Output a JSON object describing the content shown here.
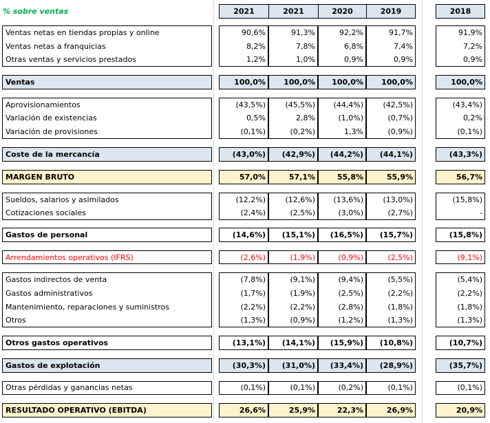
{
  "title": "% sobre ventas",
  "headers": [
    "2021",
    "2021",
    "2020",
    "2019",
    "2018"
  ],
  "blocks": [
    {
      "type": "group",
      "rows": [
        {
          "label": "Ventas netas en tiendas propias y online",
          "values": [
            "90,6%",
            "91,3%",
            "92,2%",
            "91,7%",
            "91,9%"
          ]
        },
        {
          "label": "Ventas netas a franquicias",
          "values": [
            "8,2%",
            "7,8%",
            "6,8%",
            "7,4%",
            "7,2%"
          ]
        },
        {
          "label": "Otras ventas y servicios prestados",
          "values": [
            "1,2%",
            "1,0%",
            "0,9%",
            "0,9%",
            "0,9%"
          ]
        }
      ]
    },
    {
      "type": "total",
      "fill": "blue",
      "label": "Ventas",
      "values": [
        "100,0%",
        "100,0%",
        "100,0%",
        "100,0%",
        "100,0%"
      ]
    },
    {
      "type": "group",
      "rows": [
        {
          "label": "Aprovisionamientos",
          "values": [
            "(43,5%)",
            "(45,5%)",
            "(44,4%)",
            "(42,5%)",
            "(43,4%)"
          ]
        },
        {
          "label": "Variación de existencias",
          "values": [
            "0,5%",
            "2,8%",
            "(1,0%)",
            "(0,7%)",
            "0,2%"
          ]
        },
        {
          "label": "Variación de provisiones",
          "values": [
            "(0,1%)",
            "(0,2%)",
            "1,3%",
            "(0,9%)",
            "(0,1%)"
          ]
        }
      ]
    },
    {
      "type": "total",
      "fill": "blue",
      "label": "Coste de la mercancía",
      "values": [
        "(43,0%)",
        "(42,9%)",
        "(44,2%)",
        "(44,1%)",
        "(43,3%)"
      ]
    },
    {
      "type": "total",
      "fill": "cream",
      "label": "MARGEN BRUTO",
      "values": [
        "57,0%",
        "57,1%",
        "55,8%",
        "55,9%",
        "56,7%"
      ]
    },
    {
      "type": "group",
      "rows": [
        {
          "label": "Sueldos, salarios y asimilados",
          "values": [
            "(12,2%)",
            "(12,6%)",
            "(13,6%)",
            "(13,0%)",
            "(15,8%)"
          ]
        },
        {
          "label": "Cotizaciones sociales",
          "values": [
            "(2,4%)",
            "(2,5%)",
            "(3,0%)",
            "(2,7%)",
            "-"
          ]
        }
      ]
    },
    {
      "type": "total",
      "fill": "none",
      "label": "Gastos de personal",
      "values": [
        "(14,6%)",
        "(15,1%)",
        "(16,5%)",
        "(15,7%)",
        "(15,8%)"
      ]
    },
    {
      "type": "group",
      "red": true,
      "rows": [
        {
          "label": "Arrendamientos operativos (IFRS)",
          "values": [
            "(2,6%)",
            "(1,9%)",
            "(0,9%)",
            "(2,5%)",
            "(9,1%)"
          ]
        }
      ]
    },
    {
      "type": "group",
      "rows": [
        {
          "label": "Gastos indirectos de venta",
          "values": [
            "(7,8%)",
            "(9,1%)",
            "(9,4%)",
            "(5,5%)",
            "(5,4%)"
          ]
        },
        {
          "label": "Gastos administrativos",
          "values": [
            "(1,7%)",
            "(1,9%)",
            "(2,5%)",
            "(2,2%)",
            "(2,2%)"
          ]
        },
        {
          "label": "Mantenimiento, reparaciones y suministros",
          "values": [
            "(2,2%)",
            "(2,2%)",
            "(2,8%)",
            "(1,8%)",
            "(1,8%)"
          ]
        },
        {
          "label": "Otros",
          "values": [
            "(1,3%)",
            "(0,9%)",
            "(1,2%)",
            "(1,3%)",
            "(1,3%)"
          ]
        }
      ]
    },
    {
      "type": "total",
      "fill": "none",
      "label": "Otros gastos operativos",
      "values": [
        "(13,1%)",
        "(14,1%)",
        "(15,9%)",
        "(10,8%)",
        "(10,7%)"
      ]
    },
    {
      "type": "total",
      "fill": "blue",
      "label": "Gastos de explotación",
      "values": [
        "(30,3%)",
        "(31,0%)",
        "(33,4%)",
        "(28,9%)",
        "(35,7%)"
      ]
    },
    {
      "type": "group",
      "rows": [
        {
          "label": "Otras pérdidas y ganancias netas",
          "values": [
            "(0,1%)",
            "(0,1%)",
            "(0,2%)",
            "(0,1%)",
            "(0,1%)"
          ]
        }
      ]
    },
    {
      "type": "total",
      "fill": "cream",
      "label": "RESULTADO OPERATIVO (EBITDA)",
      "values": [
        "26,6%",
        "25,9%",
        "22,3%",
        "26,9%",
        "20,9%"
      ]
    }
  ]
}
